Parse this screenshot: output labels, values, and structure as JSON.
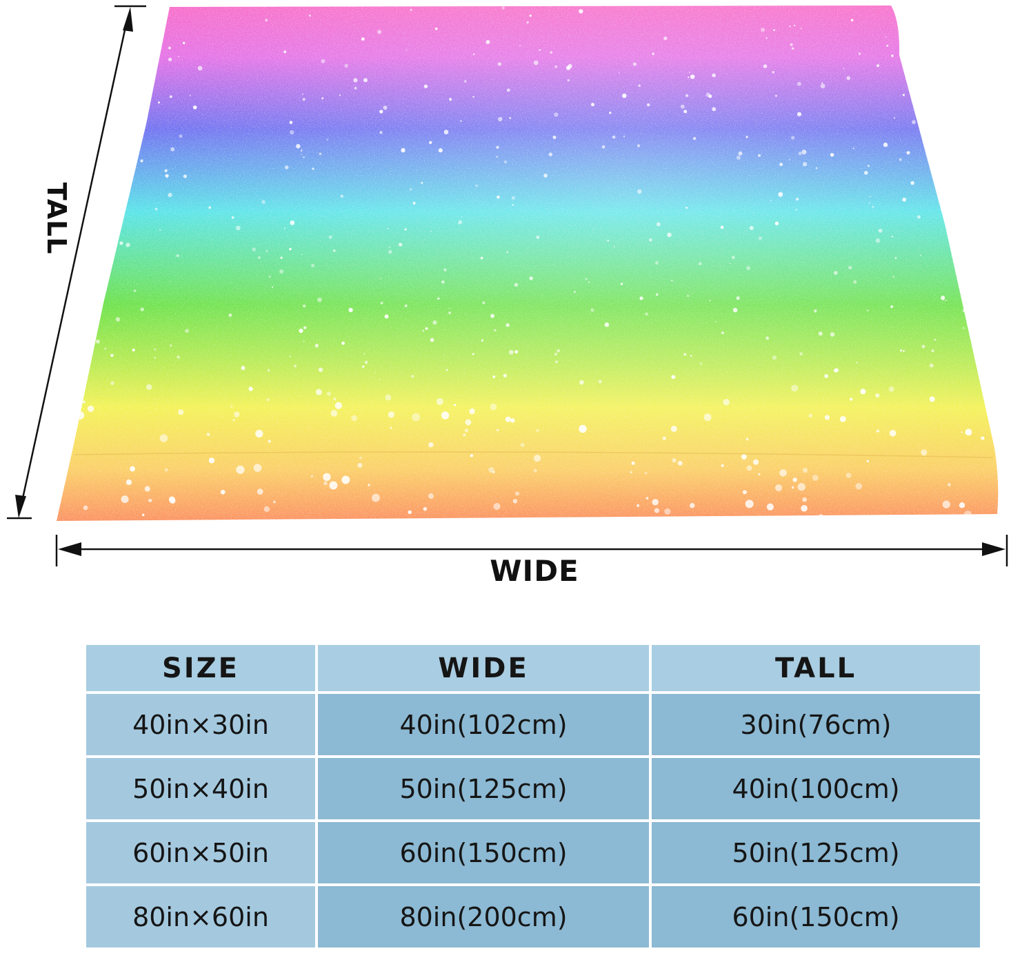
{
  "diagram": {
    "wide_label": "WIDE",
    "tall_label": "TALL",
    "product_image": "rainbow-glitter-blanket",
    "colors": [
      "#f46fd3",
      "#7a72ec",
      "#58e6e4",
      "#6ee14a",
      "#f7ef5c",
      "#fa9a62"
    ]
  },
  "table": {
    "headers": [
      "SIZE",
      "WIDE",
      "TALL"
    ],
    "colors": {
      "header_bg": "#a9cde2",
      "size_col_bg": "#a4c9df",
      "data_bg": "#8cb9d3"
    },
    "rows": [
      {
        "size": "40in×30in",
        "wide": "40in(102cm)",
        "tall": "30in(76cm)"
      },
      {
        "size": "50in×40in",
        "wide": "50in(125cm)",
        "tall": "40in(100cm)"
      },
      {
        "size": "60in×50in",
        "wide": "60in(150cm)",
        "tall": "50in(125cm)"
      },
      {
        "size": "80in×60in",
        "wide": "80in(200cm)",
        "tall": "60in(150cm)"
      }
    ]
  }
}
